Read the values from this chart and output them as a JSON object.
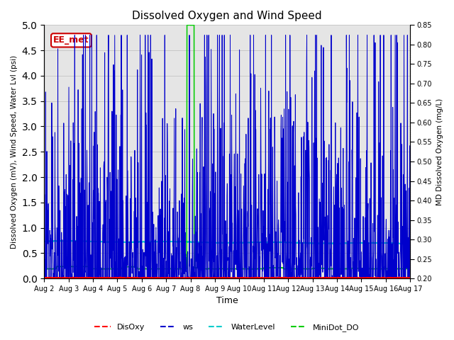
{
  "title": "Dissolved Oxygen and Wind Speed",
  "ylabel_left": "Dissolved Oxygen (mV), Wind Speed, Water Lvl (psi)",
  "ylabel_right": "MD Dissolved Oxygen (mg/L)",
  "xlabel": "Time",
  "ylim_left": [
    0.0,
    5.0
  ],
  "ylim_right": [
    0.2,
    0.85
  ],
  "yticks_left": [
    0.0,
    0.5,
    1.0,
    1.5,
    2.0,
    2.5,
    3.0,
    3.5,
    4.0,
    4.5,
    5.0
  ],
  "yticks_right": [
    0.2,
    0.25,
    0.3,
    0.35,
    0.4,
    0.45,
    0.5,
    0.55,
    0.6,
    0.65,
    0.7,
    0.75,
    0.8,
    0.85
  ],
  "annotation_text": "EE_met",
  "annotation_fgcolor": "#cc0000",
  "annotation_bgcolor": "#ffffff",
  "background_color": "#e5e5e5",
  "grid_color": "#d0d0d0",
  "colors": {
    "DisOxy": "#ff0000",
    "ws": "#0000cc",
    "WaterLevel": "#00cccc",
    "MiniDot_DO": "#00cc00"
  },
  "xtick_labels": [
    "Aug 2",
    "Aug 3",
    "Aug 4",
    "Aug 5",
    "Aug 6",
    "Aug 7",
    "Aug 8",
    "Aug 9",
    "Aug 10",
    "Aug 11",
    "Aug 12",
    "Aug 13",
    "Aug 14",
    "Aug 15",
    "Aug 16",
    "Aug 17"
  ],
  "num_points": 1500,
  "spike_day": 6.0
}
